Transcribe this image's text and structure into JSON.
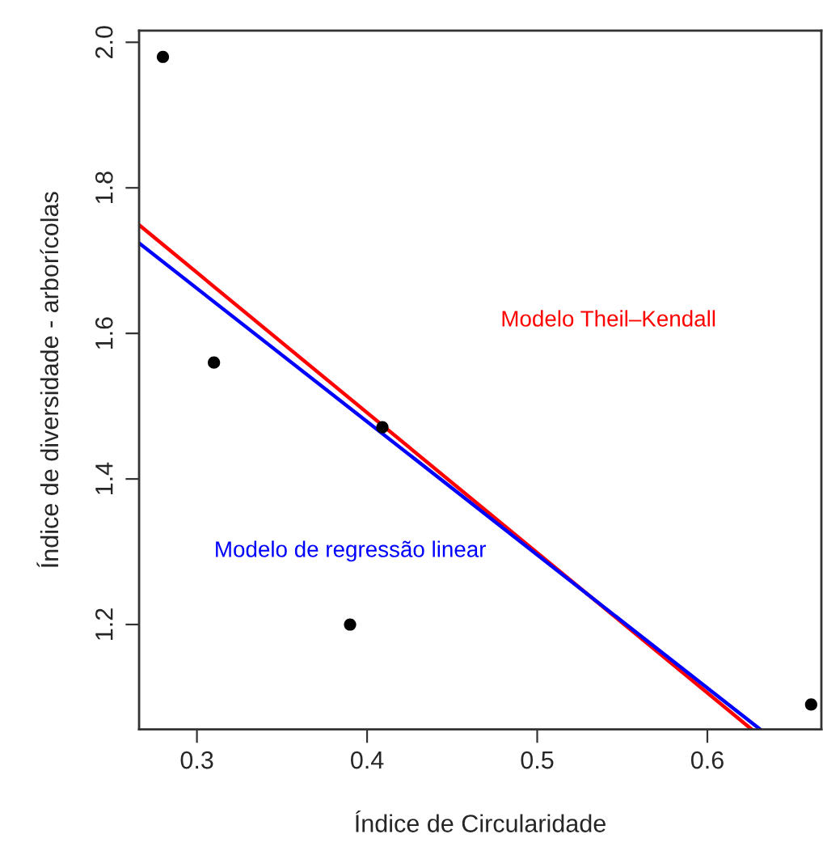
{
  "chart_data": {
    "type": "scatter",
    "xlabel": "Índice de Circularidade",
    "ylabel": "Índice de diversidade - arborícolas",
    "x": [
      0.28,
      0.31,
      0.39,
      0.409,
      0.661
    ],
    "series": [
      {
        "color": "#000000",
        "marker": "circle",
        "values": [
          1.98,
          1.56,
          1.2,
          1.471,
          1.09
        ]
      },
      {
        "type": "line",
        "color": "#ff0000",
        "x": [
          0.266,
          0.626
        ],
        "values": [
          1.749,
          1.056
        ]
      },
      {
        "type": "line",
        "color": "#0000ff",
        "x": [
          0.266,
          0.631
        ],
        "values": [
          1.724,
          1.056
        ]
      }
    ],
    "annotations": [
      "Modelo Theil–Kendall",
      "Modelo de regressão linear"
    ],
    "xlim": [
      0.266,
      0.667
    ],
    "ylim": [
      1.056,
      2.016
    ],
    "xticks": [
      0.3,
      0.4,
      0.5,
      0.6
    ],
    "yticks": [
      1.2,
      1.4,
      1.6,
      1.8,
      {
        "value": 2.0,
        "label": "2.0"
      }
    ],
    "grid": false,
    "legend": false,
    "line_style": "solid"
  }
}
